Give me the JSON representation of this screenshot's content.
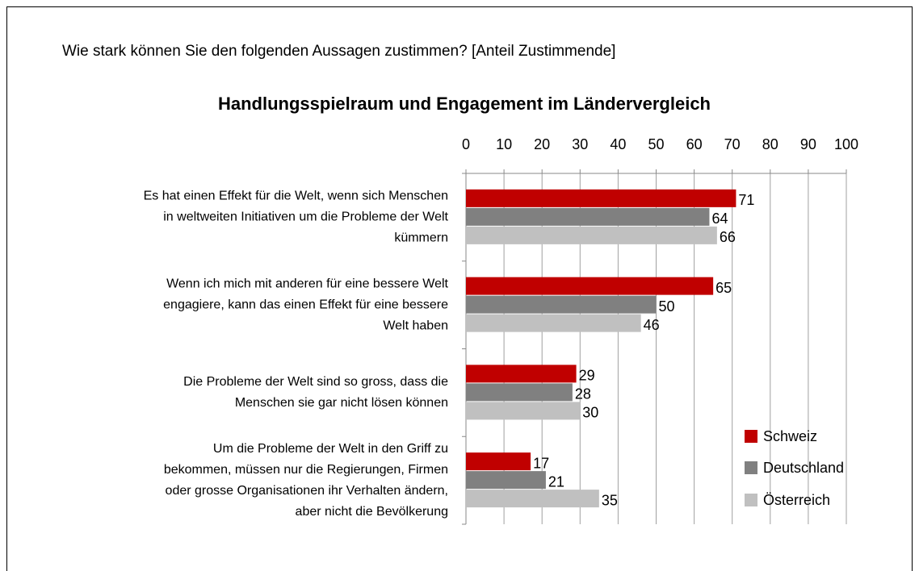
{
  "chart_data": {
    "type": "hbar",
    "subtitle": "Wie stark können Sie den folgenden Aussagen zustimmen? [Anteil Zustimmende]",
    "title": "Handlungsspielraum und Engagement im Ländervergleich",
    "categories": [
      [
        "Es hat einen Effekt für die Welt, wenn sich Menschen",
        "in weltweiten Initiativen um die Probleme der Welt",
        "kümmern"
      ],
      [
        "Wenn ich mich mit anderen für eine bessere Welt",
        "engagiere, kann das einen Effekt für eine bessere",
        "Welt haben"
      ],
      [
        "Die Probleme der Welt sind so gross, dass die",
        "Menschen sie gar nicht lösen können"
      ],
      [
        "Um die Probleme der Welt in den Griff zu",
        "bekommen, müssen nur die Regierungen, Firmen",
        "oder grosse Organisationen ihr Verhalten ändern,",
        "aber nicht die Bevölkerung"
      ]
    ],
    "series": [
      {
        "name": "Schweiz",
        "color": "#c00000",
        "values": [
          71,
          65,
          29,
          17
        ]
      },
      {
        "name": "Deutschland",
        "color": "#808080",
        "values": [
          64,
          50,
          28,
          21
        ]
      },
      {
        "name": "Österreich",
        "color": "#c0c0c0",
        "values": [
          66,
          46,
          30,
          35
        ]
      }
    ],
    "xlim": [
      0,
      100
    ],
    "xticks": [
      0,
      10,
      20,
      30,
      40,
      50,
      60,
      70,
      80,
      90,
      100
    ],
    "grid": true,
    "legend": "lower right"
  }
}
